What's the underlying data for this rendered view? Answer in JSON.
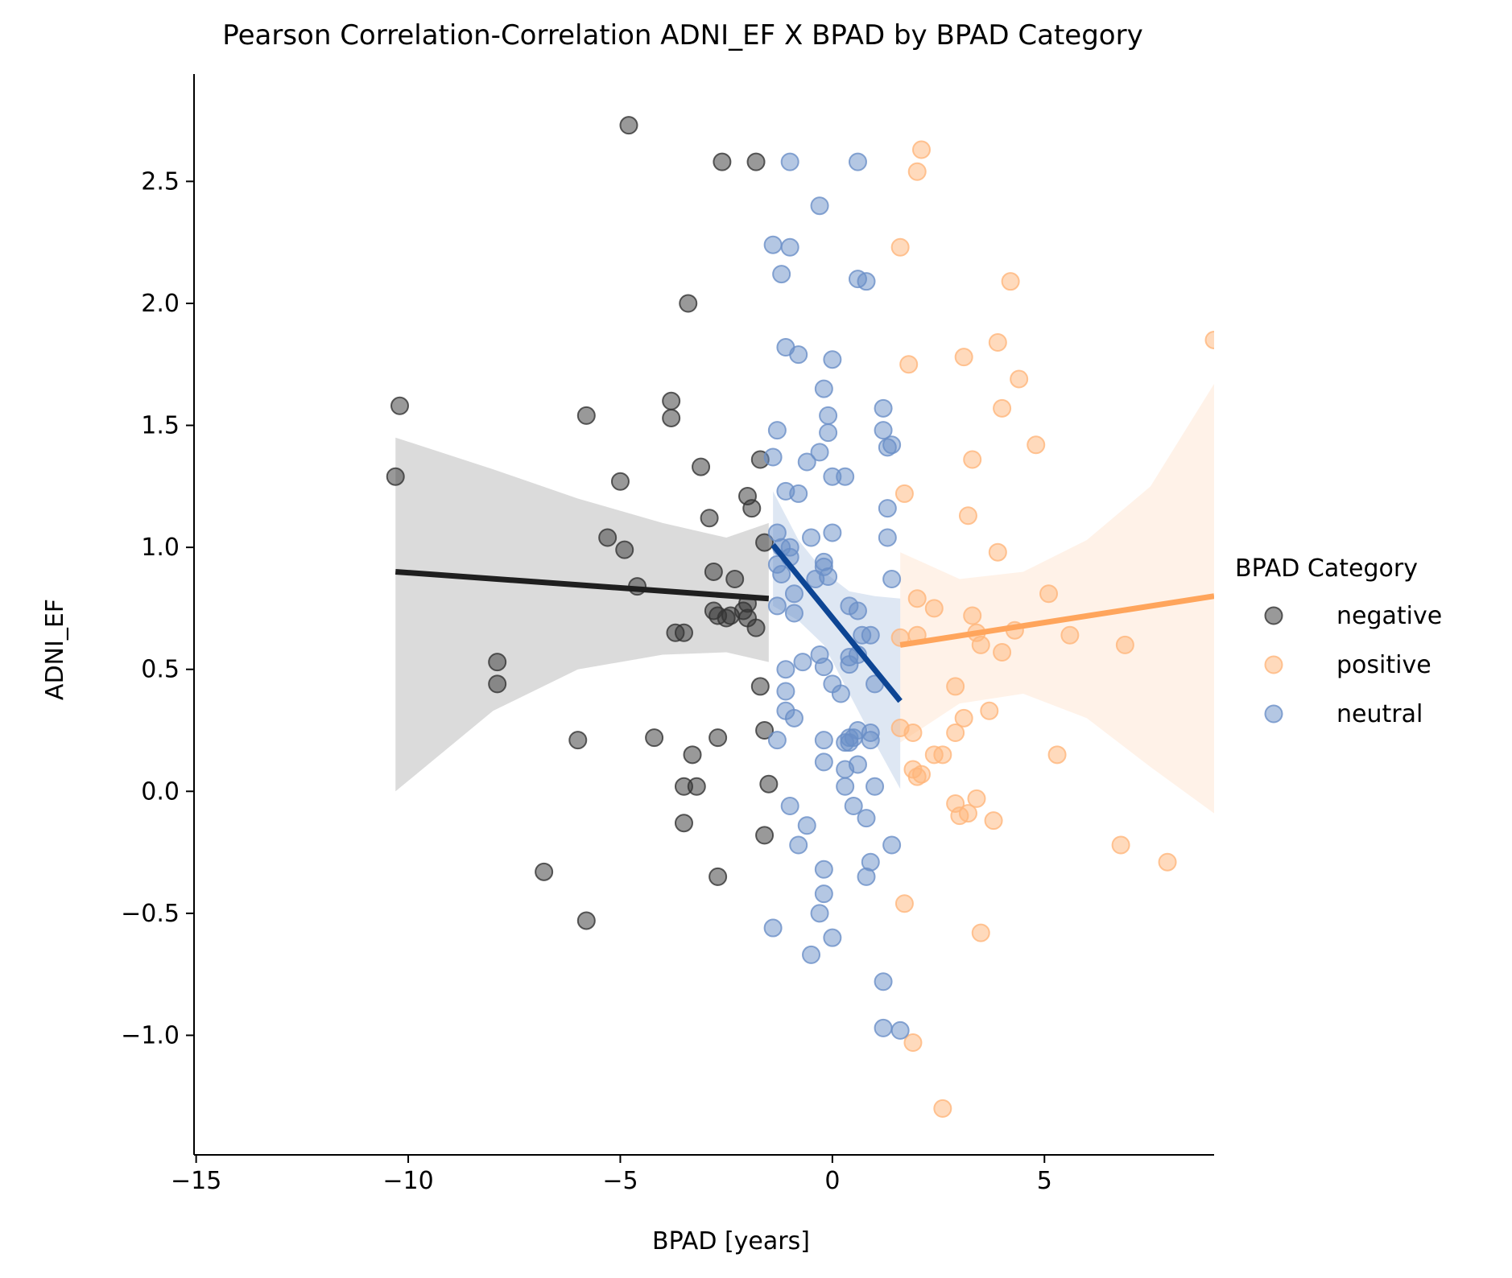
{
  "chart_data": {
    "type": "scatter",
    "title": "Pearson Correlation-Correlation ADNI_EF X BPAD by BPAD Category",
    "xlabel": "BPAD [years]",
    "ylabel": "ADNI_EF",
    "xlim": [
      -15.05,
      9.0
    ],
    "ylim": [
      -1.49,
      2.94
    ],
    "xticks": [
      -15,
      -10,
      -5,
      0,
      5
    ],
    "xtick_labels": [
      "−15",
      "−10",
      "−5",
      "0",
      "5"
    ],
    "yticks": [
      -1.0,
      -0.5,
      0.0,
      0.5,
      1.0,
      1.5,
      2.0,
      2.5
    ],
    "ytick_labels": [
      "−1.0",
      "−0.5",
      "0.0",
      "0.5",
      "1.0",
      "1.5",
      "2.0",
      "2.5"
    ],
    "grid": false,
    "legend": {
      "title": "BPAD Category",
      "placement": "right",
      "entries": [
        "negative",
        "positive",
        "neutral"
      ]
    },
    "series": [
      {
        "name": "negative",
        "color": "#333333",
        "line_color": "#1f1f1f",
        "band_color": "#bdbdbd",
        "regression": {
          "x": [
            -10.3,
            -1.5
          ],
          "y": [
            0.9,
            0.79
          ]
        },
        "band": {
          "x": [
            -10.3,
            -8.0,
            -6.0,
            -4.0,
            -2.5,
            -1.5
          ],
          "upper": [
            1.45,
            1.32,
            1.2,
            1.1,
            1.04,
            1.1
          ],
          "lower": [
            0.0,
            0.33,
            0.5,
            0.56,
            0.57,
            0.53
          ]
        },
        "points": [
          [
            -4.8,
            2.73
          ],
          [
            -2.6,
            2.58
          ],
          [
            -1.8,
            2.58
          ],
          [
            -3.4,
            2.0
          ],
          [
            -10.2,
            1.58
          ],
          [
            -5.8,
            1.54
          ],
          [
            -3.8,
            1.6
          ],
          [
            -3.8,
            1.53
          ],
          [
            -10.3,
            1.29
          ],
          [
            -5.0,
            1.27
          ],
          [
            -3.1,
            1.33
          ],
          [
            -1.7,
            1.36
          ],
          [
            -2.0,
            1.21
          ],
          [
            -1.9,
            1.16
          ],
          [
            -2.9,
            1.12
          ],
          [
            -5.3,
            1.04
          ],
          [
            -4.9,
            0.99
          ],
          [
            -1.6,
            1.02
          ],
          [
            -4.6,
            0.84
          ],
          [
            -2.8,
            0.9
          ],
          [
            -2.3,
            0.87
          ],
          [
            -2.8,
            0.74
          ],
          [
            -2.7,
            0.72
          ],
          [
            -2.5,
            0.71
          ],
          [
            -2.4,
            0.72
          ],
          [
            -2.0,
            0.77
          ],
          [
            -2.1,
            0.74
          ],
          [
            -2.0,
            0.71
          ],
          [
            -1.8,
            0.67
          ],
          [
            -3.7,
            0.65
          ],
          [
            -3.5,
            0.65
          ],
          [
            -7.9,
            0.53
          ],
          [
            -7.9,
            0.44
          ],
          [
            -1.7,
            0.43
          ],
          [
            -6.0,
            0.21
          ],
          [
            -4.2,
            0.22
          ],
          [
            -2.7,
            0.22
          ],
          [
            -1.6,
            0.25
          ],
          [
            -3.3,
            0.15
          ],
          [
            -3.5,
            0.02
          ],
          [
            -3.2,
            0.02
          ],
          [
            -1.5,
            0.03
          ],
          [
            -3.5,
            -0.13
          ],
          [
            -1.6,
            -0.18
          ],
          [
            -6.8,
            -0.33
          ],
          [
            -2.7,
            -0.35
          ],
          [
            -5.8,
            -0.53
          ]
        ]
      },
      {
        "name": "positive",
        "color": "#ffb57a",
        "line_color": "#ffa55c",
        "band_color": "#ffe8d6",
        "regression": {
          "x": [
            1.6,
            9.0
          ],
          "y": [
            0.6,
            0.8
          ]
        },
        "band": {
          "x": [
            1.6,
            3.0,
            4.5,
            6.0,
            7.5,
            9.0
          ],
          "upper": [
            0.98,
            0.87,
            0.9,
            1.03,
            1.25,
            1.67
          ],
          "lower": [
            0.2,
            0.36,
            0.4,
            0.3,
            0.1,
            -0.09
          ]
        },
        "points": [
          [
            2.1,
            2.63
          ],
          [
            2.0,
            2.54
          ],
          [
            1.6,
            2.23
          ],
          [
            4.2,
            2.09
          ],
          [
            3.9,
            1.84
          ],
          [
            1.8,
            1.75
          ],
          [
            3.1,
            1.78
          ],
          [
            4.4,
            1.69
          ],
          [
            4.0,
            1.57
          ],
          [
            4.8,
            1.42
          ],
          [
            3.3,
            1.36
          ],
          [
            1.7,
            1.22
          ],
          [
            3.2,
            1.13
          ],
          [
            3.9,
            0.98
          ],
          [
            5.1,
            0.81
          ],
          [
            2.0,
            0.79
          ],
          [
            2.4,
            0.75
          ],
          [
            3.3,
            0.72
          ],
          [
            1.6,
            0.63
          ],
          [
            2.0,
            0.64
          ],
          [
            3.4,
            0.65
          ],
          [
            4.3,
            0.66
          ],
          [
            5.6,
            0.64
          ],
          [
            3.5,
            0.6
          ],
          [
            4.0,
            0.57
          ],
          [
            6.9,
            0.6
          ],
          [
            2.9,
            0.43
          ],
          [
            3.1,
            0.3
          ],
          [
            3.7,
            0.33
          ],
          [
            1.6,
            0.26
          ],
          [
            1.9,
            0.24
          ],
          [
            2.9,
            0.24
          ],
          [
            2.4,
            0.15
          ],
          [
            2.6,
            0.15
          ],
          [
            1.9,
            0.09
          ],
          [
            2.1,
            0.07
          ],
          [
            2.0,
            0.06
          ],
          [
            5.3,
            0.15
          ],
          [
            3.4,
            -0.03
          ],
          [
            2.9,
            -0.05
          ],
          [
            3.0,
            -0.1
          ],
          [
            3.2,
            -0.09
          ],
          [
            3.8,
            -0.12
          ],
          [
            6.8,
            -0.22
          ],
          [
            7.9,
            -0.29
          ],
          [
            1.7,
            -0.46
          ],
          [
            3.5,
            -0.58
          ],
          [
            1.9,
            -1.03
          ],
          [
            2.6,
            -1.3
          ],
          [
            9.0,
            1.85
          ]
        ]
      },
      {
        "name": "neutral",
        "color": "#6a8fc7",
        "line_color": "#0d4594",
        "band_color": "#c3d3ea",
        "regression": {
          "x": [
            -1.4,
            1.6
          ],
          "y": [
            1.01,
            0.37
          ]
        },
        "band": {
          "x": [
            -1.4,
            -0.8,
            -0.2,
            0.4,
            1.0,
            1.6
          ],
          "upper": [
            1.23,
            1.03,
            0.9,
            0.82,
            0.8,
            0.79
          ],
          "lower": [
            0.76,
            0.7,
            0.6,
            0.4,
            0.2,
            0.01
          ]
        },
        "points": [
          [
            -1.0,
            2.58
          ],
          [
            0.6,
            2.58
          ],
          [
            -0.3,
            2.4
          ],
          [
            -1.4,
            2.24
          ],
          [
            -1.0,
            2.23
          ],
          [
            -1.2,
            2.12
          ],
          [
            0.6,
            2.1
          ],
          [
            0.8,
            2.09
          ],
          [
            -1.1,
            1.82
          ],
          [
            -0.8,
            1.79
          ],
          [
            0.0,
            1.77
          ],
          [
            -0.2,
            1.65
          ],
          [
            1.2,
            1.57
          ],
          [
            -0.1,
            1.54
          ],
          [
            -1.3,
            1.48
          ],
          [
            -0.1,
            1.47
          ],
          [
            1.2,
            1.48
          ],
          [
            1.4,
            1.42
          ],
          [
            1.3,
            1.41
          ],
          [
            -0.3,
            1.39
          ],
          [
            -1.4,
            1.37
          ],
          [
            -0.6,
            1.35
          ],
          [
            0.0,
            1.29
          ],
          [
            0.3,
            1.29
          ],
          [
            -1.1,
            1.23
          ],
          [
            -0.8,
            1.22
          ],
          [
            1.3,
            1.16
          ],
          [
            -1.3,
            1.06
          ],
          [
            0.0,
            1.06
          ],
          [
            -0.5,
            1.04
          ],
          [
            1.3,
            1.04
          ],
          [
            -1.2,
            1.0
          ],
          [
            -1.0,
            1.0
          ],
          [
            -1.0,
            0.96
          ],
          [
            -0.2,
            0.94
          ],
          [
            -0.2,
            0.92
          ],
          [
            -1.3,
            0.93
          ],
          [
            -1.2,
            0.89
          ],
          [
            -0.4,
            0.87
          ],
          [
            -0.1,
            0.88
          ],
          [
            1.4,
            0.87
          ],
          [
            -0.9,
            0.81
          ],
          [
            -1.3,
            0.76
          ],
          [
            -0.9,
            0.73
          ],
          [
            0.4,
            0.76
          ],
          [
            0.6,
            0.74
          ],
          [
            0.7,
            0.64
          ],
          [
            0.9,
            0.64
          ],
          [
            0.4,
            0.55
          ],
          [
            0.6,
            0.56
          ],
          [
            -0.3,
            0.56
          ],
          [
            -0.7,
            0.53
          ],
          [
            0.4,
            0.52
          ],
          [
            -0.2,
            0.51
          ],
          [
            1.0,
            0.44
          ],
          [
            0.0,
            0.44
          ],
          [
            0.2,
            0.4
          ],
          [
            -1.1,
            0.5
          ],
          [
            -1.1,
            0.41
          ],
          [
            -1.1,
            0.33
          ],
          [
            -0.9,
            0.3
          ],
          [
            -1.3,
            0.21
          ],
          [
            -0.2,
            0.21
          ],
          [
            0.4,
            0.22
          ],
          [
            0.5,
            0.22
          ],
          [
            0.3,
            0.2
          ],
          [
            0.4,
            0.2
          ],
          [
            0.6,
            0.25
          ],
          [
            0.9,
            0.24
          ],
          [
            0.9,
            0.21
          ],
          [
            0.6,
            0.11
          ],
          [
            -0.2,
            0.12
          ],
          [
            0.3,
            0.09
          ],
          [
            0.3,
            0.02
          ],
          [
            1.0,
            0.02
          ],
          [
            -1.0,
            -0.06
          ],
          [
            0.5,
            -0.06
          ],
          [
            -0.6,
            -0.14
          ],
          [
            0.8,
            -0.11
          ],
          [
            -0.8,
            -0.22
          ],
          [
            1.4,
            -0.22
          ],
          [
            0.9,
            -0.29
          ],
          [
            -0.2,
            -0.32
          ],
          [
            0.8,
            -0.35
          ],
          [
            -0.2,
            -0.42
          ],
          [
            -0.3,
            -0.5
          ],
          [
            -1.4,
            -0.56
          ],
          [
            0.0,
            -0.6
          ],
          [
            -0.5,
            -0.67
          ],
          [
            1.2,
            -0.78
          ],
          [
            1.2,
            -0.97
          ],
          [
            1.6,
            -0.98
          ]
        ]
      }
    ]
  }
}
